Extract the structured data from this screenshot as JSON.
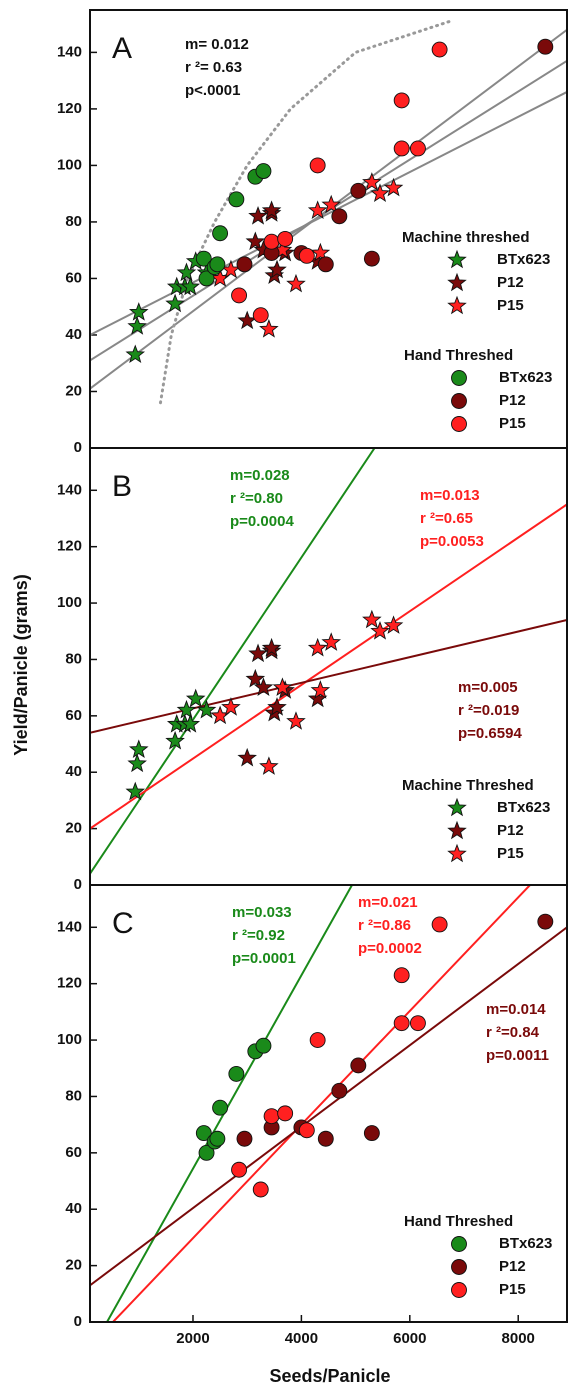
{
  "chart_data": [
    {
      "type": "scatter",
      "label": "A",
      "ylim": [
        0,
        155
      ],
      "yticks": [
        0,
        20,
        40,
        60,
        80,
        100,
        120,
        140
      ],
      "xlim": [
        100,
        8900
      ],
      "annotations": [
        {
          "color": "#111111",
          "lines": [
            "m= 0.012",
            "r ²= 0.63",
            "p<.0001"
          ]
        }
      ],
      "fit_lines": [
        {
          "color": "#888888",
          "style": "solid",
          "x": [
            100,
            8900
          ],
          "y": [
            21,
            148
          ]
        },
        {
          "color": "#888888",
          "style": "solid",
          "x": [
            100,
            8900
          ],
          "y": [
            31,
            137
          ]
        },
        {
          "color": "#888888",
          "style": "solid",
          "x": [
            100,
            8900
          ],
          "y": [
            40,
            126
          ]
        },
        {
          "color": "#999999",
          "style": "dotted",
          "x": [
            1400,
            1600,
            1900,
            2400,
            3000,
            3800,
            5000,
            6740
          ],
          "y": [
            16,
            40,
            60,
            80,
            100,
            120,
            140,
            151
          ]
        }
      ],
      "groups": [
        {
          "title": "Machine threshed",
          "series": [
            {
              "name": "BTx623",
              "color": "#1a8a1a",
              "marker": "star",
              "x": [
                935,
                970,
                1000,
                1670,
                1700,
                1850,
                1880,
                1950,
                2050,
                2250
              ],
              "y": [
                33,
                43,
                48,
                51,
                57,
                57,
                62,
                57,
                66,
                62
              ]
            },
            {
              "name": "P12",
              "color": "#7a0a0a",
              "marker": "star",
              "x": [
                3000,
                3150,
                3200,
                3300,
                3450,
                3450,
                3500,
                3550,
                3700,
                4300
              ],
              "y": [
                45,
                73,
                82,
                70,
                83,
                84,
                61,
                63,
                69,
                66
              ]
            },
            {
              "name": "P15",
              "color": "#ff2020",
              "marker": "star",
              "x": [
                2500,
                2700,
                3400,
                3650,
                3900,
                4300,
                4350,
                4550,
                5300,
                5450,
                5700
              ],
              "y": [
                60,
                63,
                42,
                70,
                58,
                84,
                69,
                86,
                94,
                90,
                92
              ]
            }
          ]
        },
        {
          "title": "Hand Threshed",
          "series": [
            {
              "name": "BTx623",
              "color": "#1a8a1a",
              "marker": "circle",
              "x": [
                2200,
                2250,
                2400,
                2450,
                2500,
                2800,
                3150,
                3300
              ],
              "y": [
                67,
                60,
                64,
                65,
                76,
                88,
                96,
                98
              ]
            },
            {
              "name": "P12",
              "color": "#7a0a0a",
              "marker": "circle",
              "x": [
                2950,
                3450,
                4000,
                4450,
                4700,
                5050,
                5300,
                8500
              ],
              "y": [
                65,
                69,
                69,
                65,
                82,
                91,
                67,
                142
              ]
            },
            {
              "name": "P15",
              "color": "#ff2020",
              "marker": "circle",
              "x": [
                2850,
                3250,
                3450,
                3700,
                4100,
                4300,
                5850,
                5850,
                6150,
                6550
              ],
              "y": [
                54,
                47,
                73,
                74,
                68,
                100,
                106,
                123,
                106,
                141
              ]
            }
          ]
        }
      ]
    },
    {
      "type": "scatter",
      "label": "B",
      "ylabel": "Yield/Panicle (grams)",
      "ylim": [
        0,
        155
      ],
      "yticks": [
        0,
        20,
        40,
        60,
        80,
        100,
        120,
        140
      ],
      "xlim": [
        100,
        8900
      ],
      "annotations": [
        {
          "color": "#1a8a1a",
          "lines": [
            "m=0.028",
            "r ²=0.80",
            "p=0.0004"
          ]
        },
        {
          "color": "#ff2020",
          "lines": [
            "m=0.013",
            "r ²=0.65",
            "p=0.0053"
          ]
        },
        {
          "color": "#7a0a0a",
          "lines": [
            "m=0.005",
            "r ²=0.019",
            "p=0.6594"
          ]
        }
      ],
      "fit_lines": [
        {
          "color": "#1a8a1a",
          "style": "solid",
          "x": [
            100,
            5350
          ],
          "y": [
            4,
            155
          ]
        },
        {
          "color": "#ff2020",
          "style": "solid",
          "x": [
            100,
            8900
          ],
          "y": [
            20,
            135
          ]
        },
        {
          "color": "#7a0a0a",
          "style": "solid",
          "x": [
            100,
            8900
          ],
          "y": [
            54,
            94
          ]
        }
      ],
      "groups": [
        {
          "title": "Machine Threshed",
          "series": [
            {
              "name": "BTx623",
              "color": "#1a8a1a",
              "marker": "star",
              "x": [
                935,
                970,
                1000,
                1670,
                1700,
                1850,
                1880,
                1950,
                2050,
                2250
              ],
              "y": [
                33,
                43,
                48,
                51,
                57,
                57,
                62,
                57,
                66,
                62
              ]
            },
            {
              "name": "P12",
              "color": "#7a0a0a",
              "marker": "star",
              "x": [
                3000,
                3150,
                3200,
                3300,
                3450,
                3450,
                3500,
                3550,
                3700,
                4300
              ],
              "y": [
                45,
                73,
                82,
                70,
                83,
                84,
                61,
                63,
                69,
                66
              ]
            },
            {
              "name": "P15",
              "color": "#ff2020",
              "marker": "star",
              "x": [
                2500,
                2700,
                3400,
                3650,
                3900,
                4300,
                4350,
                4550,
                5300,
                5450,
                5700
              ],
              "y": [
                60,
                63,
                42,
                70,
                58,
                84,
                69,
                86,
                94,
                90,
                92
              ]
            }
          ]
        }
      ]
    },
    {
      "type": "scatter",
      "label": "C",
      "xlabel": "Seeds/Panicle",
      "ylim": [
        0,
        155
      ],
      "yticks": [
        0,
        20,
        40,
        60,
        80,
        100,
        120,
        140
      ],
      "xlim": [
        100,
        8900
      ],
      "xticks": [
        2000,
        4000,
        6000,
        8000
      ],
      "annotations": [
        {
          "color": "#1a8a1a",
          "lines": [
            "m=0.033",
            "r ²=0.92",
            "p=0.0001"
          ]
        },
        {
          "color": "#ff2020",
          "lines": [
            "m=0.021",
            "r ²=0.86",
            "p=0.0002"
          ]
        },
        {
          "color": "#7a0a0a",
          "lines": [
            "m=0.014",
            "r ²=0.84",
            "p=0.0011"
          ]
        }
      ],
      "fit_lines": [
        {
          "color": "#1a8a1a",
          "style": "solid",
          "x": [
            414,
            4934
          ],
          "y": [
            0,
            155
          ]
        },
        {
          "color": "#ff2020",
          "style": "solid",
          "x": [
            524,
            8218
          ],
          "y": [
            0,
            155
          ]
        },
        {
          "color": "#7a0a0a",
          "style": "solid",
          "x": [
            100,
            8900
          ],
          "y": [
            13,
            140
          ]
        }
      ],
      "groups": [
        {
          "title": "Hand Threshed",
          "series": [
            {
              "name": "BTx623",
              "color": "#1a8a1a",
              "marker": "circle",
              "x": [
                2200,
                2250,
                2400,
                2450,
                2500,
                2800,
                3150,
                3300
              ],
              "y": [
                67,
                60,
                64,
                65,
                76,
                88,
                96,
                98
              ]
            },
            {
              "name": "P12",
              "color": "#7a0a0a",
              "marker": "circle",
              "x": [
                2950,
                3450,
                4000,
                4450,
                4700,
                5050,
                5300,
                8500
              ],
              "y": [
                65,
                69,
                69,
                65,
                82,
                91,
                67,
                142
              ]
            },
            {
              "name": "P15",
              "color": "#ff2020",
              "marker": "circle",
              "x": [
                2850,
                3250,
                3450,
                3700,
                4100,
                4300,
                5850,
                5850,
                6150,
                6550
              ],
              "y": [
                54,
                47,
                73,
                74,
                68,
                100,
                106,
                123,
                106,
                141
              ]
            }
          ]
        }
      ]
    }
  ]
}
